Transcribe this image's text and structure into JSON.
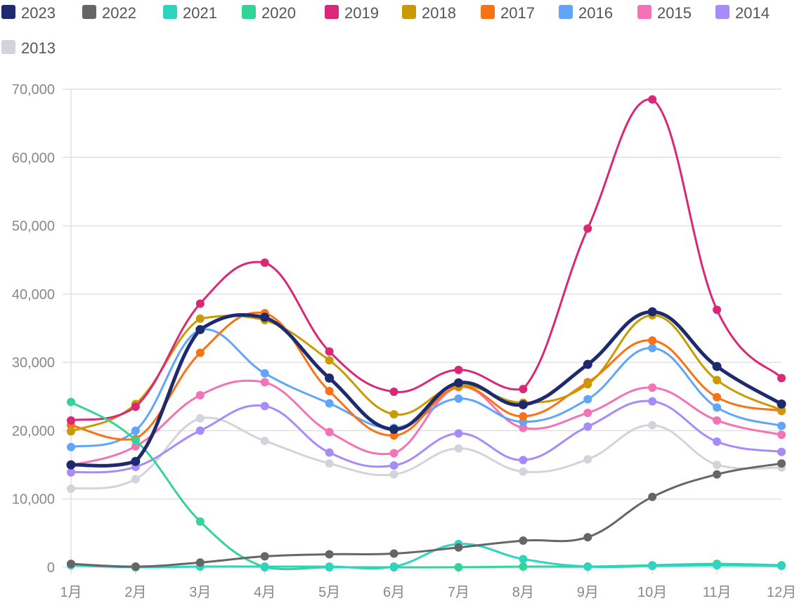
{
  "chart_data": {
    "type": "line",
    "title": "",
    "xlabel": "",
    "ylabel": "",
    "categories": [
      "1月",
      "2月",
      "3月",
      "4月",
      "5月",
      "6月",
      "7月",
      "8月",
      "9月",
      "10月",
      "11月",
      "12月"
    ],
    "ylim": [
      0,
      70000
    ],
    "y_ticks": [
      "0",
      "10,000",
      "20,000",
      "30,000",
      "40,000",
      "50,000",
      "60,000",
      "70,000"
    ],
    "y_tick_values": [
      0,
      10000,
      20000,
      30000,
      40000,
      50000,
      60000,
      70000
    ],
    "grid": true,
    "legend_position": "top",
    "series": [
      {
        "name": "2023",
        "color": "#1e2a6e",
        "values": [
          15000,
          15500,
          34800,
          36600,
          27700,
          20200,
          27000,
          23800,
          29700,
          37400,
          29400,
          23900
        ]
      },
      {
        "name": "2022",
        "color": "#666666",
        "values": [
          500,
          100,
          700,
          1600,
          1900,
          2000,
          2900,
          3900,
          4400,
          10300,
          13600,
          15200
        ]
      },
      {
        "name": "2021",
        "color": "#2dd4bf",
        "values": [
          300,
          0,
          100,
          100,
          100,
          100,
          3400,
          1200,
          100,
          200,
          300,
          200
        ]
      },
      {
        "name": "2020",
        "color": "#34d399",
        "values": [
          24200,
          18600,
          6700,
          0,
          0,
          0,
          0,
          100,
          100,
          300,
          500,
          300
        ]
      },
      {
        "name": "2019",
        "color": "#db2777",
        "values": [
          21500,
          23500,
          38600,
          44600,
          31600,
          25700,
          28900,
          26100,
          49600,
          68500,
          37700,
          27700
        ]
      },
      {
        "name": "2018",
        "color": "#ca9a04",
        "values": [
          19900,
          23900,
          36400,
          36200,
          30300,
          22400,
          26600,
          24100,
          26800,
          36900,
          27400,
          23000
        ]
      },
      {
        "name": "2017",
        "color": "#f97316",
        "values": [
          20800,
          18800,
          31400,
          37200,
          25800,
          19300,
          26400,
          22100,
          27100,
          33200,
          24900,
          22900
        ]
      },
      {
        "name": "2016",
        "color": "#60a5fa",
        "values": [
          17600,
          20000,
          34800,
          28400,
          24000,
          20400,
          24700,
          21300,
          24600,
          32100,
          23400,
          20700
        ]
      },
      {
        "name": "2015",
        "color": "#f472b6",
        "values": [
          14900,
          17700,
          25200,
          27100,
          19800,
          16700,
          26400,
          20400,
          22600,
          26300,
          21500,
          19400
        ]
      },
      {
        "name": "2014",
        "color": "#a78bfa",
        "values": [
          13900,
          14700,
          20000,
          23600,
          16800,
          14900,
          19600,
          15700,
          20600,
          24300,
          18400,
          16900
        ]
      },
      {
        "name": "2013",
        "color": "#d1d5db",
        "values": [
          11500,
          12900,
          21800,
          18500,
          15200,
          13600,
          17400,
          14000,
          15800,
          20800,
          15000,
          14600
        ]
      }
    ]
  }
}
